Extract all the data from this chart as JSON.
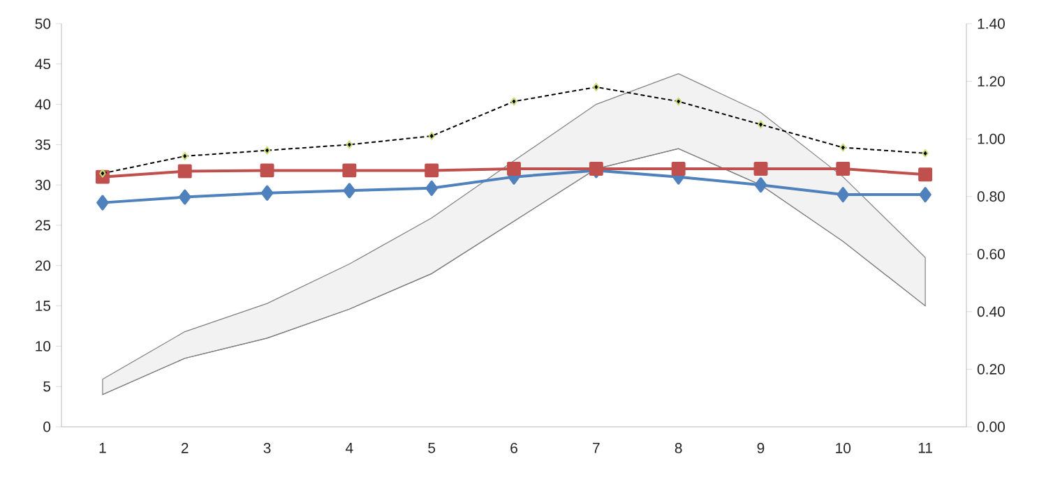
{
  "chart_data": {
    "type": "line",
    "categories": [
      "1",
      "2",
      "3",
      "4",
      "5",
      "6",
      "7",
      "8",
      "9",
      "10",
      "11"
    ],
    "ylim": [
      0,
      50
    ],
    "yticks": [
      0,
      5,
      10,
      15,
      20,
      25,
      30,
      35,
      40,
      45,
      50
    ],
    "y2lim": [
      0,
      1.4
    ],
    "y2ticks": [
      {
        "value": 0,
        "label": "0.00"
      },
      {
        "value": 0.2,
        "label": "0.20"
      },
      {
        "value": 0.4,
        "label": "0.40"
      },
      {
        "value": 0.6,
        "label": "0.60"
      },
      {
        "value": 0.8,
        "label": "0.80"
      },
      {
        "value": 1.0,
        "label": "1.00"
      },
      {
        "value": 1.2,
        "label": "1.20"
      },
      {
        "value": 1.4,
        "label": "1.40"
      }
    ],
    "series": [
      {
        "color": "#808080",
        "marker": "none",
        "values": [
          4,
          8.5,
          11,
          14.6,
          19,
          25.5,
          32,
          34.5,
          30,
          23,
          15
        ],
        "lower": [
          4,
          8.5,
          11,
          14.6,
          19,
          25.5,
          32,
          34.5,
          30,
          23,
          15
        ],
        "upper": [
          5.9,
          11.8,
          15.3,
          20.2,
          25.9,
          33,
          40,
          43.8,
          39,
          31,
          21
        ]
      },
      {
        "color": "#4f81bd",
        "marker": "diamond",
        "values": [
          27.8,
          28.5,
          29,
          29.3,
          29.6,
          31,
          31.8,
          31,
          30,
          28.8,
          28.8
        ]
      },
      {
        "color": "#c0504d",
        "marker": "square",
        "values": [
          31,
          31.7,
          31.8,
          31.8,
          31.8,
          32,
          32,
          32,
          32,
          32,
          31.3
        ]
      },
      {
        "color": "#000000",
        "marker": "diamond",
        "line_style": "dotted",
        "axis": "y2",
        "values": [
          0.88,
          0.94,
          0.96,
          0.98,
          1.01,
          1.13,
          1.18,
          1.13,
          1.05,
          0.97,
          0.95
        ]
      }
    ]
  }
}
